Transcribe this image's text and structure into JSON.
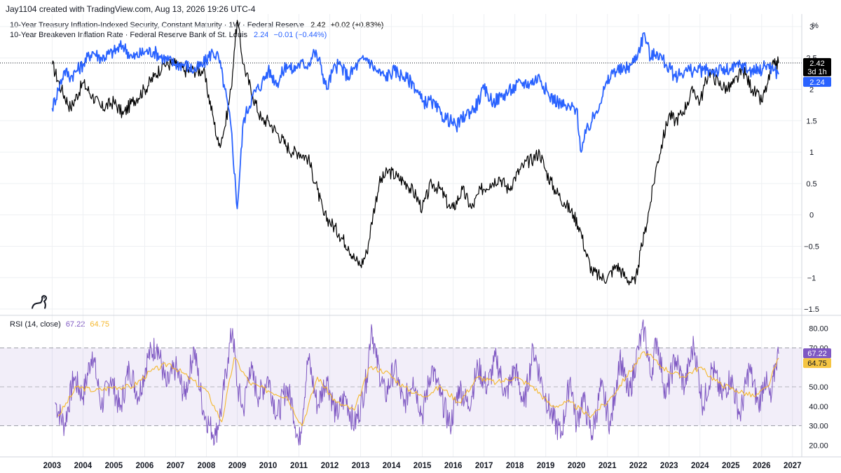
{
  "header": {
    "attribution": "Jay1104 created with TradingView.com, Aug 13, 2026 19:26 UTC-4"
  },
  "legend": {
    "tips": {
      "name": "10-Year Treasury Inflation-Indexed Security, Constant Maturity · 1W · Federal Reserve",
      "value": "2.42",
      "change": "+0.02 (+0.83%)",
      "color": "#000000"
    },
    "breakeven": {
      "name": "10-Year Breakeven Inflation Rate · Federal Reserve Bank of St. Louis",
      "value": "2.24",
      "change": "−0.01 (−0.44%)",
      "color": "#2962ff"
    },
    "rsi": {
      "name": "RSI (14, close)",
      "value1": "67.22",
      "value2": "64.75",
      "color1": "#7e57c2",
      "color2": "#f5b82e"
    }
  },
  "price_badges": {
    "tips_value": "2.42",
    "tips_countdown": "3d 1h",
    "breakeven_value": "2.24"
  },
  "rsi_badges": {
    "rsi_value": "67.22",
    "ma_value": "64.75"
  },
  "chart_data": [
    {
      "type": "line",
      "unit_label": "%",
      "ylim": [
        -1.6,
        3.2
      ],
      "yticks": [
        "3",
        "2.5",
        "2",
        "1.5",
        "1",
        "0.5",
        "0",
        "−0.5",
        "−1",
        "−1.5"
      ],
      "ytick_values": [
        3,
        2.5,
        2,
        1.5,
        1,
        0.5,
        0,
        -0.5,
        -1,
        -1.5
      ],
      "x_ticks": [
        "2003",
        "2004",
        "2005",
        "2006",
        "2007",
        "2008",
        "2009",
        "2010",
        "2011",
        "2012",
        "2013",
        "2014",
        "2015",
        "2016",
        "2017",
        "2018",
        "2019",
        "2020",
        "2021",
        "2022",
        "2023",
        "2024",
        "2025",
        "2026",
        "2027"
      ],
      "xlim": [
        2002.9,
        2027.3
      ],
      "grid": true,
      "legend_position": "top-left",
      "series": [
        {
          "color": "#000000",
          "x": [
            2003.0,
            2003.3,
            2003.6,
            2004.0,
            2004.3,
            2004.6,
            2005.0,
            2005.3,
            2005.6,
            2006.0,
            2006.3,
            2006.6,
            2007.0,
            2007.3,
            2007.6,
            2007.9,
            2008.2,
            2008.4,
            2008.6,
            2008.8,
            2008.9,
            2009.0,
            2009.2,
            2009.5,
            2009.8,
            2010.0,
            2010.3,
            2010.6,
            2010.8,
            2011.0,
            2011.3,
            2011.6,
            2011.8,
            2012.0,
            2012.3,
            2012.6,
            2012.8,
            2013.0,
            2013.2,
            2013.4,
            2013.6,
            2013.9,
            2014.2,
            2014.5,
            2014.8,
            2015.0,
            2015.3,
            2015.6,
            2015.9,
            2016.0,
            2016.3,
            2016.6,
            2016.9,
            2017.2,
            2017.5,
            2017.8,
            2018.0,
            2018.3,
            2018.6,
            2018.8,
            2019.0,
            2019.3,
            2019.6,
            2019.9,
            2020.1,
            2020.3,
            2020.5,
            2020.8,
            2021.0,
            2021.3,
            2021.6,
            2021.9,
            2022.0,
            2022.2,
            2022.4,
            2022.6,
            2022.8,
            2023.0,
            2023.2,
            2023.4,
            2023.6,
            2023.8,
            2024.0,
            2024.3,
            2024.6,
            2024.9,
            2025.1,
            2025.4,
            2025.7,
            2026.0,
            2026.2,
            2026.4,
            2026.55
          ],
          "values": [
            2.4,
            2.0,
            1.7,
            2.1,
            1.9,
            1.7,
            1.8,
            1.6,
            1.8,
            2.0,
            2.2,
            2.4,
            2.4,
            2.3,
            2.3,
            2.3,
            1.6,
            1.1,
            1.4,
            2.0,
            2.6,
            3.1,
            2.4,
            1.9,
            1.5,
            1.5,
            1.3,
            1.1,
            1.0,
            1.0,
            0.9,
            0.4,
            0.0,
            -0.1,
            -0.3,
            -0.5,
            -0.7,
            -0.8,
            -0.6,
            0.0,
            0.5,
            0.7,
            0.6,
            0.5,
            0.3,
            0.1,
            0.5,
            0.4,
            0.1,
            0.1,
            0.4,
            0.1,
            0.4,
            0.5,
            0.6,
            0.4,
            0.6,
            0.8,
            0.9,
            1.0,
            0.7,
            0.4,
            0.2,
            0.0,
            -0.2,
            -0.6,
            -0.9,
            -1.0,
            -1.0,
            -0.8,
            -1.0,
            -1.1,
            -0.8,
            -0.3,
            0.2,
            0.8,
            1.2,
            1.6,
            1.5,
            1.6,
            1.8,
            2.0,
            1.8,
            2.3,
            2.1,
            2.0,
            2.1,
            2.3,
            2.0,
            1.8,
            2.1,
            2.4,
            2.42
          ]
        },
        {
          "color": "#2962ff",
          "x": [
            2003.0,
            2003.2,
            2003.4,
            2003.6,
            2003.8,
            2004.0,
            2004.3,
            2004.6,
            2005.0,
            2005.3,
            2005.6,
            2006.0,
            2006.3,
            2006.6,
            2007.0,
            2007.3,
            2007.6,
            2007.9,
            2008.2,
            2008.4,
            2008.6,
            2008.8,
            2009.0,
            2009.2,
            2009.5,
            2009.8,
            2010.0,
            2010.3,
            2010.6,
            2010.8,
            2011.0,
            2011.3,
            2011.5,
            2011.7,
            2011.9,
            2012.1,
            2012.3,
            2012.6,
            2012.9,
            2013.2,
            2013.5,
            2013.8,
            2014.1,
            2014.4,
            2014.7,
            2015.0,
            2015.3,
            2015.6,
            2015.9,
            2016.1,
            2016.4,
            2016.7,
            2017.0,
            2017.3,
            2017.6,
            2017.9,
            2018.2,
            2018.5,
            2018.8,
            2019.1,
            2019.4,
            2019.7,
            2020.0,
            2020.15,
            2020.3,
            2020.6,
            2020.9,
            2021.2,
            2021.5,
            2021.8,
            2022.0,
            2022.2,
            2022.4,
            2022.6,
            2022.9,
            2023.2,
            2023.5,
            2023.8,
            2024.1,
            2024.4,
            2024.7,
            2025.0,
            2025.3,
            2025.6,
            2025.9,
            2026.2,
            2026.4,
            2026.55
          ],
          "values": [
            1.7,
            2.0,
            2.3,
            2.2,
            2.3,
            2.4,
            2.6,
            2.5,
            2.6,
            2.7,
            2.5,
            2.6,
            2.6,
            2.5,
            2.4,
            2.4,
            2.3,
            2.4,
            2.6,
            2.5,
            2.0,
            1.4,
            0.1,
            1.5,
            1.9,
            2.1,
            2.3,
            2.1,
            2.4,
            2.3,
            2.4,
            2.4,
            2.6,
            2.4,
            2.0,
            2.3,
            2.4,
            2.2,
            2.4,
            2.5,
            2.3,
            2.2,
            2.3,
            2.2,
            2.1,
            1.8,
            1.8,
            1.6,
            1.5,
            1.4,
            1.6,
            1.7,
            2.0,
            1.8,
            1.9,
            2.0,
            2.1,
            2.1,
            2.2,
            1.9,
            1.8,
            1.7,
            1.7,
            1.0,
            1.3,
            1.6,
            2.0,
            2.3,
            2.3,
            2.4,
            2.6,
            2.9,
            2.5,
            2.6,
            2.4,
            2.2,
            2.3,
            2.3,
            2.3,
            2.3,
            2.3,
            2.3,
            2.4,
            2.3,
            2.3,
            2.4,
            2.3,
            2.24
          ]
        }
      ]
    },
    {
      "type": "line",
      "title": "RSI (14, close)",
      "ylim": [
        14,
        86
      ],
      "yticks": [
        "80.00",
        "70.00",
        "50.00",
        "40.00",
        "30.00",
        "20.00"
      ],
      "ytick_values": [
        80,
        70,
        50,
        40,
        30,
        20
      ],
      "band": [
        30,
        70
      ],
      "midline": 50,
      "x_ticks": [
        "2003",
        "2004",
        "2005",
        "2006",
        "2007",
        "2008",
        "2009",
        "2010",
        "2011",
        "2012",
        "2013",
        "2014",
        "2015",
        "2016",
        "2017",
        "2018",
        "2019",
        "2020",
        "2021",
        "2022",
        "2023",
        "2024",
        "2025",
        "2026",
        "2027"
      ],
      "xlim": [
        2002.9,
        2027.3
      ],
      "series": [
        {
          "color": "#7e57c2",
          "x": [
            2003.1,
            2003.4,
            2003.7,
            2004.0,
            2004.3,
            2004.6,
            2004.9,
            2005.2,
            2005.5,
            2005.8,
            2006.1,
            2006.4,
            2006.7,
            2007.0,
            2007.3,
            2007.6,
            2007.9,
            2008.1,
            2008.3,
            2008.5,
            2008.7,
            2008.85,
            2009.0,
            2009.2,
            2009.4,
            2009.7,
            2010.0,
            2010.3,
            2010.6,
            2010.8,
            2011.0,
            2011.3,
            2011.6,
            2011.9,
            2012.2,
            2012.5,
            2012.8,
            2013.0,
            2013.2,
            2013.35,
            2013.5,
            2013.8,
            2014.1,
            2014.4,
            2014.7,
            2015.0,
            2015.3,
            2015.6,
            2015.9,
            2016.2,
            2016.5,
            2016.8,
            2017.1,
            2017.4,
            2017.7,
            2018.0,
            2018.3,
            2018.6,
            2018.9,
            2019.2,
            2019.5,
            2019.8,
            2020.0,
            2020.2,
            2020.5,
            2020.8,
            2021.1,
            2021.4,
            2021.7,
            2022.0,
            2022.2,
            2022.4,
            2022.6,
            2022.9,
            2023.2,
            2023.5,
            2023.8,
            2024.1,
            2024.4,
            2024.7,
            2025.0,
            2025.3,
            2025.6,
            2025.9,
            2026.1,
            2026.3,
            2026.45,
            2026.55
          ],
          "values": [
            42,
            30,
            55,
            45,
            68,
            40,
            55,
            38,
            60,
            45,
            65,
            72,
            50,
            60,
            45,
            70,
            38,
            30,
            25,
            40,
            65,
            80,
            50,
            38,
            60,
            45,
            55,
            35,
            50,
            40,
            20,
            65,
            40,
            55,
            35,
            45,
            30,
            40,
            55,
            82,
            65,
            45,
            60,
            40,
            55,
            35,
            60,
            45,
            30,
            50,
            40,
            60,
            50,
            65,
            45,
            60,
            40,
            70,
            50,
            35,
            25,
            55,
            30,
            45,
            25,
            50,
            30,
            65,
            45,
            70,
            80,
            55,
            75,
            45,
            65,
            50,
            72,
            40,
            60,
            45,
            55,
            35,
            60,
            40,
            55,
            42,
            62,
            67
          ]
        },
        {
          "color": "#f5b82e",
          "x": [
            2003.2,
            2003.8,
            2004.4,
            2005.0,
            2005.6,
            2006.2,
            2006.8,
            2007.4,
            2008.0,
            2008.5,
            2008.9,
            2009.4,
            2010.0,
            2010.6,
            2011.1,
            2011.6,
            2012.2,
            2012.8,
            2013.3,
            2013.8,
            2014.4,
            2015.0,
            2015.6,
            2016.2,
            2016.8,
            2017.4,
            2018.0,
            2018.6,
            2019.2,
            2019.8,
            2020.4,
            2021.0,
            2021.6,
            2022.2,
            2022.8,
            2023.4,
            2024.0,
            2024.6,
            2025.2,
            2025.8,
            2026.2,
            2026.55
          ],
          "values": [
            35,
            50,
            48,
            50,
            50,
            58,
            62,
            55,
            48,
            32,
            65,
            52,
            48,
            45,
            30,
            55,
            42,
            38,
            60,
            58,
            50,
            45,
            50,
            42,
            55,
            52,
            55,
            50,
            40,
            42,
            35,
            42,
            55,
            68,
            60,
            55,
            60,
            52,
            48,
            45,
            50,
            64.75
          ]
        }
      ]
    }
  ]
}
